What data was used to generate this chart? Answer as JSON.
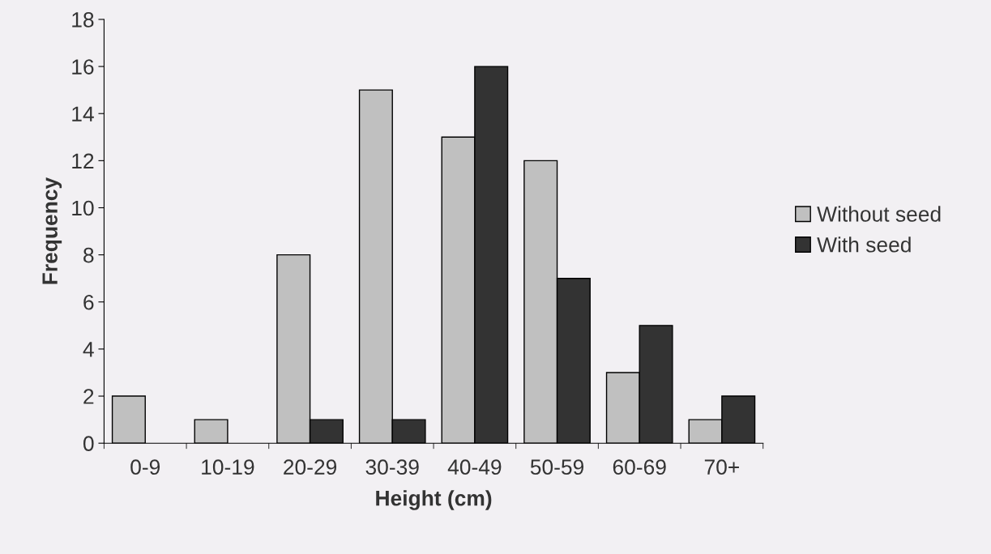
{
  "chart_data": {
    "type": "bar",
    "xlabel": "Height (cm)",
    "ylabel": "Frequency",
    "categories": [
      "0-9",
      "10-19",
      "20-29",
      "30-39",
      "40-49",
      "50-59",
      "60-69",
      "70+"
    ],
    "series": [
      {
        "name": "Without seed",
        "color": "#c0c0c0",
        "values": [
          2,
          1,
          8,
          15,
          13,
          12,
          3,
          1
        ]
      },
      {
        "name": "With seed",
        "color": "#333333",
        "values": [
          0,
          0,
          1,
          1,
          16,
          7,
          5,
          2
        ]
      }
    ],
    "ylim": [
      0,
      18
    ],
    "yticks": [
      0,
      2,
      4,
      6,
      8,
      10,
      12,
      14,
      16,
      18
    ],
    "grid": false,
    "legend": "right"
  }
}
